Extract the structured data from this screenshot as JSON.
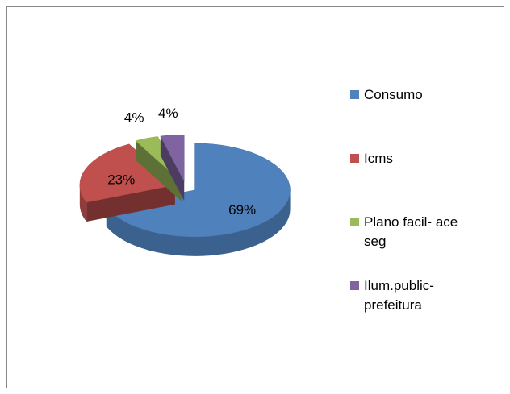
{
  "chart_data": {
    "type": "pie3d",
    "categories": [
      "Consumo",
      "Icms",
      "Plano facil- ace seg",
      "Ilum.public-prefeitura"
    ],
    "values": [
      69,
      23,
      4,
      4
    ],
    "value_labels": [
      "69%",
      "23%",
      "4%",
      "4%"
    ],
    "colors": [
      "#4f81bd",
      "#c0504d",
      "#9bbb59",
      "#8064a2"
    ],
    "legend": "right"
  }
}
